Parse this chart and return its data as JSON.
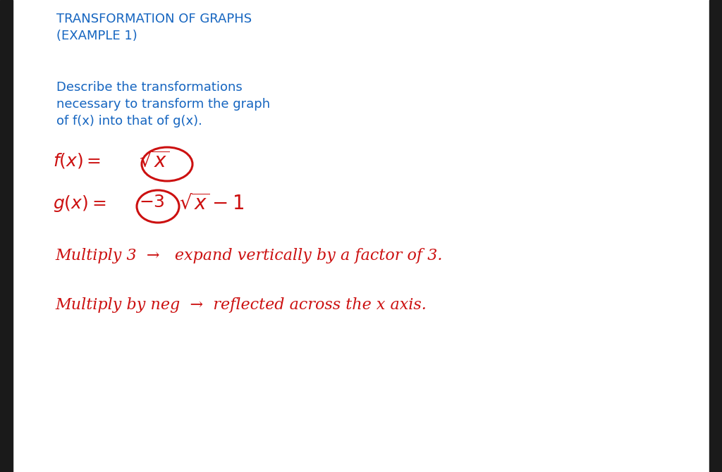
{
  "bg_color": "#ffffff",
  "border_color": "#1a1a1a",
  "title_color": "#1565C0",
  "red_color": "#CC1010",
  "title_line1": "TRANSFORMATION OF GRAPHS",
  "title_line2": "(EXAMPLE 1)",
  "desc_line1": "Describe the transformations",
  "desc_line2": "necessary to transform the graph",
  "desc_line3": "of f(x) into that of g(x).",
  "title_fontsize": 13,
  "desc_fontsize": 13,
  "eq_fontsize": 18,
  "note_fontsize": 16,
  "hand_note1": "Multiply 3  →   expand vertically by a factor of 3.",
  "hand_note2": "Multiply by neg  →  reflected across the x axis."
}
